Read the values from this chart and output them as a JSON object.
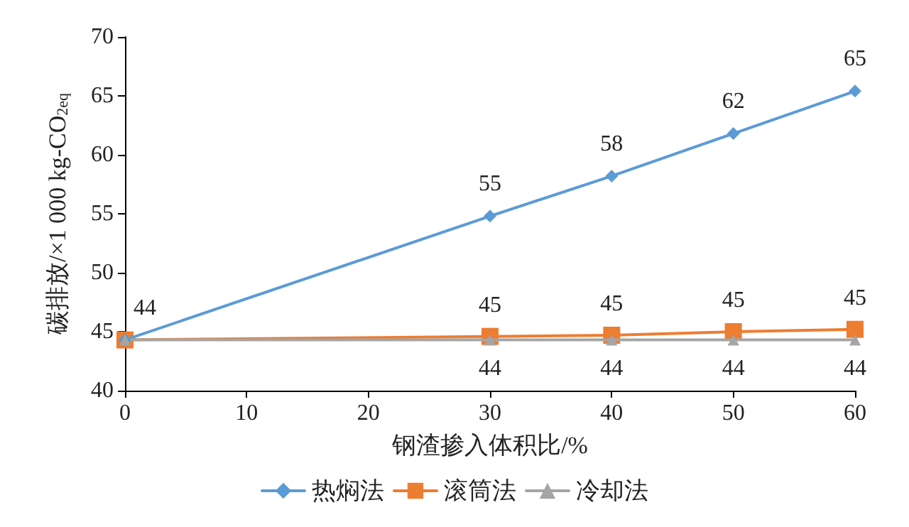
{
  "chart_data": {
    "type": "line",
    "xlabel": "钢渣掺入体积比/%",
    "ylabel": "碳排放/×1 000 kg-CO$_{2eq}$",
    "x": [
      0,
      30,
      40,
      50,
      60
    ],
    "xlim": [
      0,
      60
    ],
    "xticks": [
      0,
      10,
      20,
      30,
      40,
      50,
      60
    ],
    "ylim": [
      40,
      70
    ],
    "yticks": [
      40,
      45,
      50,
      55,
      60,
      65,
      70
    ],
    "grid": false,
    "legend": "bottom",
    "line_style": "solid",
    "series": [
      {
        "name": "热焖法",
        "color": "#5b9bd5",
        "marker": "diamond",
        "values": [
          44.3,
          54.8,
          58.2,
          61.8,
          65.4
        ],
        "value_labels": [
          "44",
          "55",
          "58",
          "62",
          "65"
        ]
      },
      {
        "name": "滚筒法",
        "color": "#ed7d31",
        "marker": "square",
        "values": [
          44.3,
          44.6,
          44.7,
          45.0,
          45.2
        ],
        "value_labels": [
          null,
          "45",
          "45",
          "45",
          "45"
        ]
      },
      {
        "name": "冷却法",
        "color": "#a5a5a5",
        "marker": "triangle",
        "values": [
          44.3,
          44.3,
          44.3,
          44.3,
          44.3
        ],
        "value_labels": [
          null,
          "44",
          "44",
          "44",
          "44"
        ]
      }
    ]
  }
}
